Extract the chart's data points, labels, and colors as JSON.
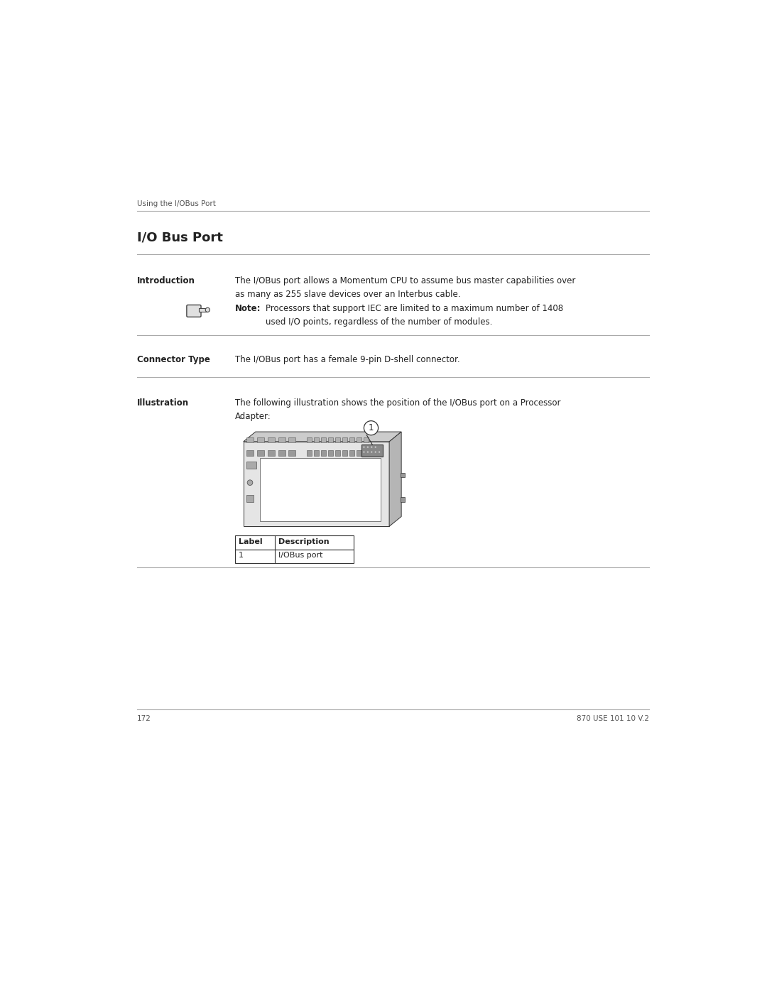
{
  "bg_color": "#ffffff",
  "text_color": "#222222",
  "header_text": "Using the I/OBus Port",
  "title": "I/O Bus Port",
  "intro_label": "Introduction",
  "intro_text": "The I/OBus port allows a Momentum CPU to assume bus master capabilities over\nas many as 255 slave devices over an Interbus cable.",
  "note_label": "Note:",
  "note_text": "Processors that support IEC are limited to a maximum number of 1408\nused I/O points, regardless of the number of modules.",
  "connector_label": "Connector Type",
  "connector_text": "The I/OBus port has a female 9-pin D-shell connector.",
  "illustration_label": "Illustration",
  "illustration_text": "The following illustration shows the position of the I/OBus port on a Processor\nAdapter:",
  "table_headers": [
    "Label",
    "Description"
  ],
  "table_rows": [
    [
      "1",
      "I/OBus port"
    ]
  ],
  "page_number": "172",
  "doc_number": "870 USE 101 10 V.2",
  "line_color": "#aaaaaa",
  "font_size_header": 7.5,
  "font_size_title": 13,
  "font_size_body": 8.5,
  "font_size_footer": 7.5
}
